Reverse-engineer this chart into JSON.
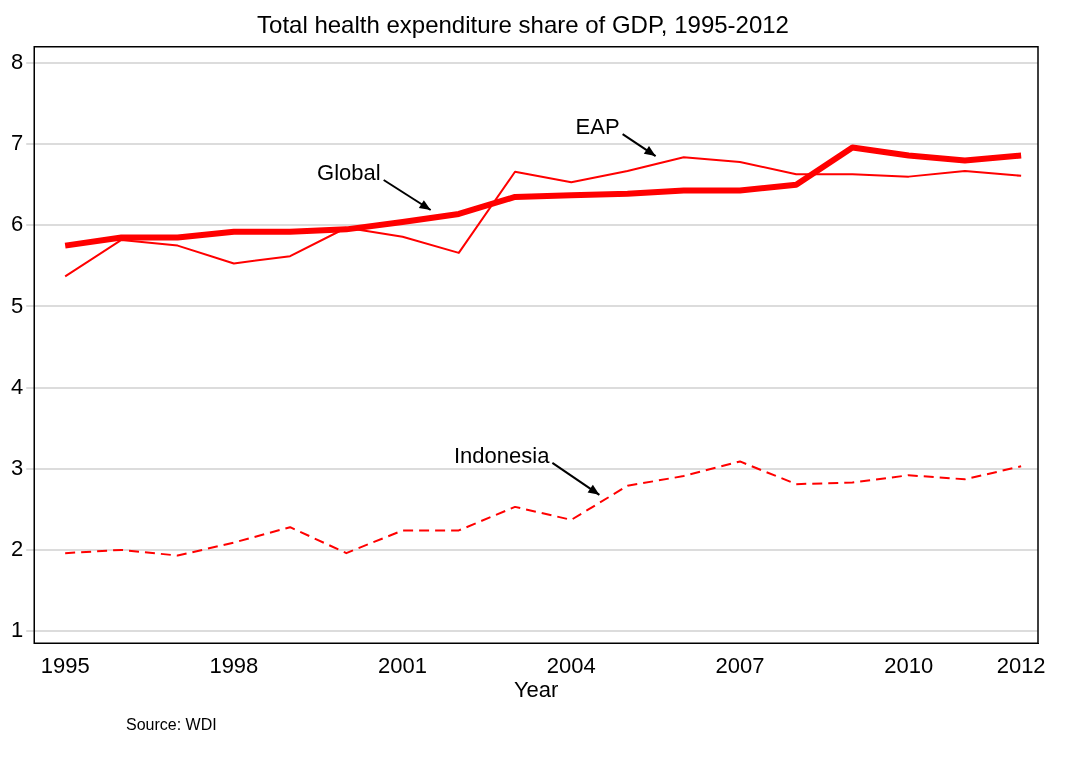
{
  "chart_data": {
    "type": "line",
    "title": "Total health expenditure share of GDP, 1995-2012",
    "xlabel": "Year",
    "x": [
      1995,
      1996,
      1997,
      1998,
      1999,
      2000,
      2001,
      2002,
      2003,
      2004,
      2005,
      2006,
      2007,
      2008,
      2009,
      2010,
      2011,
      2012
    ],
    "series": [
      {
        "name": "Global",
        "color": "#ff0000",
        "line_style": "solid",
        "values": [
          5.75,
          5.85,
          5.85,
          5.92,
          5.92,
          5.95,
          6.04,
          6.14,
          6.35,
          6.37,
          6.39,
          6.43,
          6.43,
          6.5,
          6.96,
          6.86,
          6.8,
          6.86
        ]
      },
      {
        "name": "EAP",
        "color": "#ff0000",
        "line_style": "solid",
        "values": [
          5.37,
          5.82,
          5.75,
          5.53,
          5.62,
          5.97,
          5.86,
          5.66,
          6.66,
          6.53,
          6.67,
          6.84,
          6.78,
          6.63,
          6.63,
          6.6,
          6.67,
          6.61
        ]
      },
      {
        "name": "Indonesia",
        "color": "#ff0000",
        "line_style": "dashed",
        "values": [
          1.96,
          2.0,
          1.93,
          2.09,
          2.28,
          1.96,
          2.24,
          2.24,
          2.53,
          2.37,
          2.79,
          2.91,
          3.09,
          2.81,
          2.83,
          2.92,
          2.87,
          3.03
        ]
      }
    ],
    "xlim": [
      1994.45,
      2012.3
    ],
    "xticks": [
      1995,
      1998,
      2001,
      2004,
      2007,
      2010,
      2012
    ],
    "ylim": [
      0.85,
      8.2
    ],
    "yticks": [
      1,
      2,
      3,
      4,
      5,
      6,
      7,
      8
    ],
    "grid": "y",
    "legend": false,
    "marker": "none",
    "annotations": [
      "Source: WDI"
    ]
  }
}
